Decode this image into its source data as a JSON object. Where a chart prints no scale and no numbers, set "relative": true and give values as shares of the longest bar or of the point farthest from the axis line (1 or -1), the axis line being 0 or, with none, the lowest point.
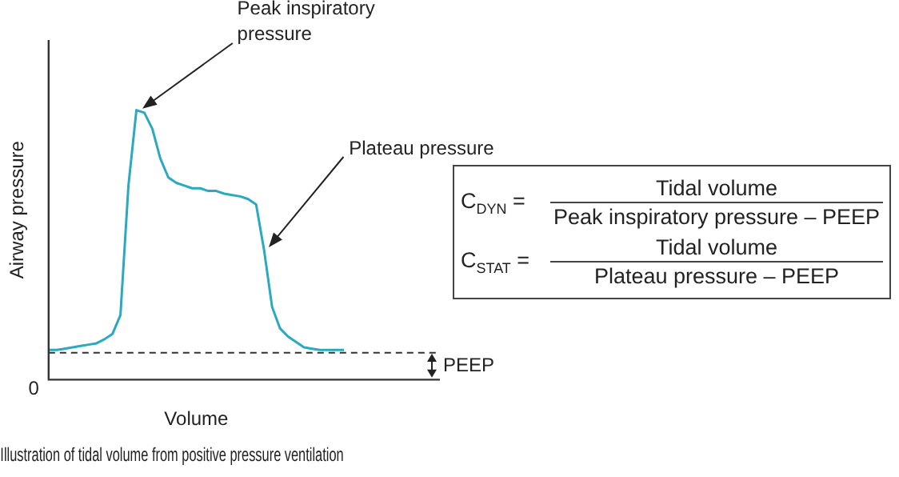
{
  "chart_data": {
    "type": "line",
    "relative": true,
    "title": "Illustration of tidal volume from positive pressure ventilation",
    "xlabel": "Volume",
    "ylabel": "Airway pressure",
    "color": "#2aa9c0",
    "categories": [
      null,
      null,
      null,
      null,
      null,
      null,
      null,
      null,
      null,
      null,
      null,
      null,
      null,
      null,
      null,
      null,
      null,
      null,
      null,
      null,
      null,
      null,
      null,
      null,
      null,
      null,
      null,
      null,
      null,
      null,
      null,
      null,
      null,
      null,
      null,
      null,
      null,
      null
    ],
    "values": [
      0.11,
      0.11,
      0.115,
      0.12,
      0.125,
      0.13,
      0.135,
      0.15,
      0.17,
      0.24,
      0.72,
      1,
      0.99,
      0.93,
      0.82,
      0.75,
      0.73,
      0.72,
      0.71,
      0.71,
      0.7,
      0.7,
      0.69,
      0.685,
      0.68,
      0.67,
      0.65,
      0.48,
      0.27,
      0.19,
      0.16,
      0.14,
      0.12,
      0.115,
      0.11,
      0.11,
      0.11,
      0.11
    ],
    "ref_lines": [
      {
        "axis": "y",
        "value": 0.1,
        "label": "PEEP",
        "line_style": "dashed",
        "color": "#333333"
      }
    ],
    "annotations": [
      "Peak inspiratory pressure",
      "Plateau pressure",
      "0",
      "C$_{DYN}$ =",
      "Tidal volume",
      "Peak inspiratory pressure – PEEP",
      "C$_{STAT}$ =",
      "Tidal volume",
      "Plateau pressure – PEEP"
    ]
  }
}
